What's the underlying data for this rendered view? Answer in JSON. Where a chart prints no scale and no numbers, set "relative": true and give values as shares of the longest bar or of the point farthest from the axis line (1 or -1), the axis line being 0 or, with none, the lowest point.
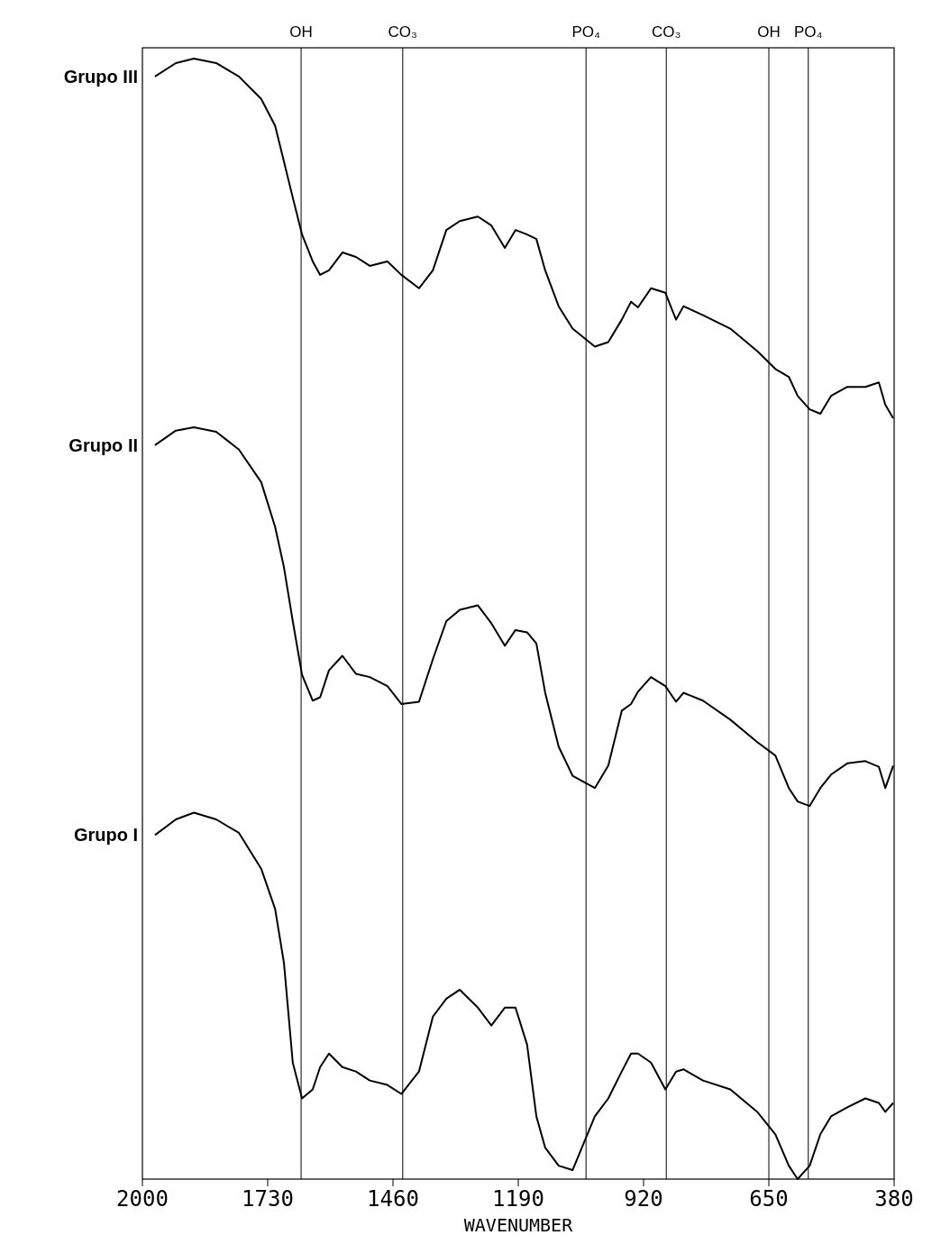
{
  "chart_data": {
    "type": "line",
    "relative": true,
    "xlabel": "WAVENUMBER",
    "x": [
      1973,
      1928,
      1889,
      1841,
      1792,
      1744,
      1714,
      1695,
      1676,
      1656,
      1633,
      1617,
      1598,
      1569,
      1540,
      1510,
      1472,
      1442,
      1404,
      1374,
      1345,
      1316,
      1277,
      1248,
      1219,
      1196,
      1171,
      1151,
      1132,
      1103,
      1073,
      1025,
      996,
      967,
      947,
      932,
      904,
      873,
      850,
      834,
      792,
      733,
      675,
      636,
      607,
      588,
      562,
      539,
      516,
      481,
      442,
      413,
      399,
      382
    ],
    "xlim": [
      2000,
      380
    ],
    "xticks": [
      2000,
      1730,
      1460,
      1190,
      920,
      650,
      380
    ],
    "tick_labels": "x",
    "grid": false,
    "line_style": "solid",
    "series": [
      {
        "name": "Grupo III",
        "color": "#000000",
        "values": [
          0.984,
          0.996,
          1.0,
          0.996,
          0.984,
          0.964,
          0.94,
          0.908,
          0.876,
          0.843,
          0.819,
          0.807,
          0.811,
          0.827,
          0.823,
          0.815,
          0.819,
          0.807,
          0.795,
          0.811,
          0.847,
          0.855,
          0.859,
          0.851,
          0.831,
          0.847,
          0.843,
          0.839,
          0.811,
          0.779,
          0.759,
          0.743,
          0.747,
          0.767,
          0.783,
          0.778,
          0.795,
          0.791,
          0.767,
          0.779,
          0.771,
          0.759,
          0.739,
          0.723,
          0.716,
          0.699,
          0.687,
          0.683,
          0.699,
          0.707,
          0.707,
          0.711,
          0.691,
          0.679
        ]
      },
      {
        "name": "Grupo II",
        "color": "#000000",
        "values": [
          0.655,
          0.668,
          0.671,
          0.667,
          0.651,
          0.622,
          0.582,
          0.546,
          0.498,
          0.45,
          0.427,
          0.43,
          0.454,
          0.467,
          0.451,
          0.448,
          0.44,
          0.424,
          0.426,
          0.464,
          0.498,
          0.508,
          0.512,
          0.496,
          0.476,
          0.49,
          0.488,
          0.478,
          0.434,
          0.386,
          0.36,
          0.349,
          0.369,
          0.418,
          0.424,
          0.435,
          0.448,
          0.44,
          0.426,
          0.434,
          0.427,
          0.41,
          0.39,
          0.378,
          0.349,
          0.337,
          0.333,
          0.349,
          0.361,
          0.371,
          0.373,
          0.368,
          0.349,
          0.369
        ]
      },
      {
        "name": "Grupo I",
        "color": "#000000",
        "values": [
          0.307,
          0.321,
          0.327,
          0.321,
          0.309,
          0.277,
          0.241,
          0.193,
          0.104,
          0.072,
          0.08,
          0.1,
          0.112,
          0.1,
          0.096,
          0.088,
          0.084,
          0.076,
          0.096,
          0.145,
          0.161,
          0.169,
          0.153,
          0.137,
          0.153,
          0.153,
          0.12,
          0.056,
          0.028,
          0.012,
          0.008,
          0.056,
          0.072,
          0.096,
          0.112,
          0.112,
          0.104,
          0.08,
          0.096,
          0.098,
          0.088,
          0.08,
          0.06,
          0.04,
          0.012,
          0.0,
          0.012,
          0.04,
          0.056,
          0.064,
          0.072,
          0.068,
          0.06,
          0.068
        ]
      }
    ],
    "ref_lines": [
      {
        "axis": "x",
        "value": 1658,
        "label": "OH",
        "color": "#000000"
      },
      {
        "axis": "x",
        "value": 1439,
        "label": "CO₃",
        "color": "#000000"
      },
      {
        "axis": "x",
        "value": 1044,
        "label": "PO₄",
        "color": "#000000"
      },
      {
        "axis": "x",
        "value": 871,
        "label": "CO₃",
        "color": "#000000"
      },
      {
        "axis": "x",
        "value": 650,
        "label": "OH",
        "color": "#000000"
      },
      {
        "axis": "x",
        "value": 565,
        "label": "PO₄",
        "color": "#000000"
      }
    ]
  }
}
